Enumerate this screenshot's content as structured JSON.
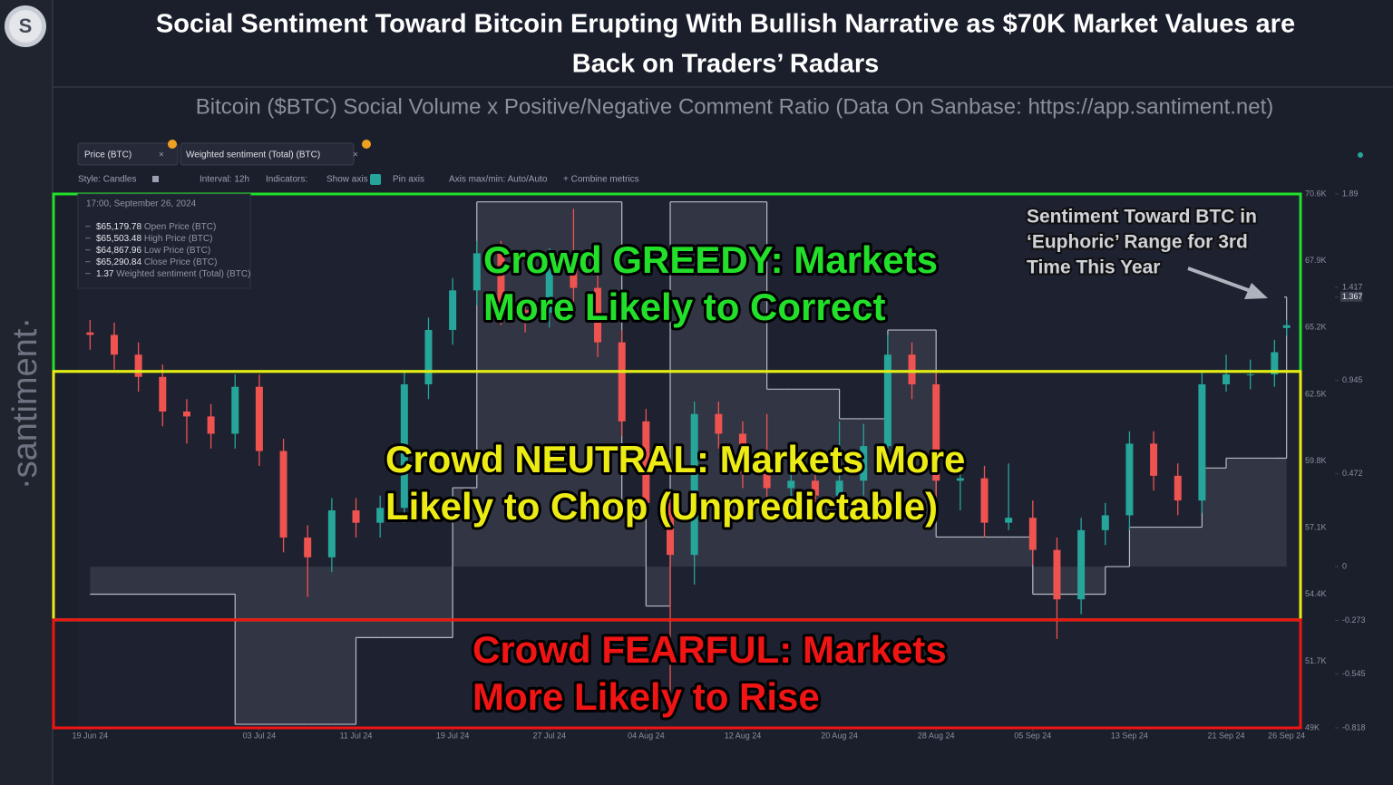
{
  "header": {
    "logo": "S",
    "title_lines": [
      "Social Sentiment Toward Bitcoin Erupting With Bullish Narrative as $70K Market Values are",
      "Back on Traders’ Radars"
    ],
    "subtitle": "Bitcoin ($BTC) Social Volume x Positive/Negative Comment Ratio (Data On Sanbase: https://app.santiment.net)",
    "brand": "·santiment·"
  },
  "toolbar": {
    "tabs": [
      "Price (BTC)",
      "Weighted sentiment (Total) (BTC)"
    ],
    "controls": [
      "Style: Candles",
      "Interval: 12h",
      "Indicators:",
      "Show axis",
      "Pin axis",
      "Axis max/min: Auto/Auto",
      "+ Combine metrics"
    ]
  },
  "tooltip": {
    "time": "17:00, September 26, 2024",
    "rows": [
      {
        "value": "$65,179.78",
        "label": "Open Price (BTC)"
      },
      {
        "value": "$65,503.48",
        "label": "High Price (BTC)"
      },
      {
        "value": "$64,867.96",
        "label": "Low Price (BTC)"
      },
      {
        "value": "$65,290.84",
        "label": "Close Price (BTC)"
      },
      {
        "value": "1.37",
        "label": "Weighted sentiment (Total) (BTC)"
      }
    ]
  },
  "chart_data": {
    "type": "candlestick",
    "x": [
      "2024-06-19",
      "2024-06-21",
      "2024-06-23",
      "2024-06-25",
      "2024-06-27",
      "2024-06-29",
      "2024-07-01",
      "2024-07-03",
      "2024-07-05",
      "2024-07-07",
      "2024-07-09",
      "2024-07-11",
      "2024-07-13",
      "2024-07-15",
      "2024-07-17",
      "2024-07-19",
      "2024-07-21",
      "2024-07-23",
      "2024-07-25",
      "2024-07-27",
      "2024-07-29",
      "2024-07-31",
      "2024-08-02",
      "2024-08-04",
      "2024-08-06",
      "2024-08-08",
      "2024-08-10",
      "2024-08-12",
      "2024-08-14",
      "2024-08-16",
      "2024-08-18",
      "2024-08-20",
      "2024-08-22",
      "2024-08-24",
      "2024-08-26",
      "2024-08-28",
      "2024-08-30",
      "2024-09-01",
      "2024-09-03",
      "2024-09-05",
      "2024-09-07",
      "2024-09-09",
      "2024-09-11",
      "2024-09-13",
      "2024-09-15",
      "2024-09-17",
      "2024-09-19",
      "2024-09-21",
      "2024-09-23",
      "2024-09-25",
      "2024-09-26"
    ],
    "open": [
      65000,
      64900,
      64100,
      63200,
      61800,
      61600,
      60900,
      62800,
      60200,
      56700,
      55900,
      57800,
      57300,
      57900,
      62900,
      65100,
      66700,
      68200,
      65900,
      65800,
      67900,
      66800,
      64600,
      61400,
      58100,
      56000,
      61700,
      60900,
      59300,
      58700,
      59000,
      58400,
      59000,
      60400,
      64100,
      62900,
      59000,
      59100,
      57300,
      57500,
      56200,
      54200,
      57000,
      57600,
      60500,
      59200,
      58200,
      62900,
      63300,
      63300,
      65179.78
    ],
    "high": [
      65500,
      65400,
      64600,
      63700,
      62300,
      62100,
      63300,
      63300,
      60700,
      57200,
      58300,
      58300,
      58400,
      63400,
      65600,
      67200,
      68700,
      68700,
      66400,
      68400,
      70000,
      67300,
      65100,
      61900,
      58600,
      62200,
      62200,
      61400,
      61700,
      59500,
      59500,
      61400,
      61300,
      64900,
      64600,
      63400,
      59900,
      59600,
      59700,
      58200,
      56700,
      57500,
      58100,
      61000,
      61000,
      59700,
      63400,
      64100,
      63900,
      64700,
      65503.48
    ],
    "low": [
      64300,
      63500,
      62600,
      61200,
      60500,
      60300,
      60300,
      59600,
      56100,
      54300,
      55300,
      56700,
      56700,
      57300,
      62300,
      64500,
      66100,
      65300,
      65000,
      65200,
      66200,
      64000,
      60800,
      57500,
      49500,
      54800,
      60300,
      58700,
      58100,
      57500,
      57800,
      57900,
      58400,
      60300,
      62300,
      58300,
      57800,
      56700,
      57000,
      55600,
      52600,
      53600,
      56400,
      57000,
      58600,
      57600,
      57700,
      62600,
      62700,
      62800,
      64867.96
    ],
    "close": [
      64900,
      64100,
      63200,
      61800,
      61600,
      60900,
      62800,
      60200,
      56700,
      55900,
      57800,
      57300,
      57900,
      62900,
      65100,
      66700,
      68200,
      65900,
      65800,
      67900,
      66800,
      64600,
      61400,
      58100,
      56000,
      61700,
      60900,
      59300,
      58700,
      59000,
      58400,
      59000,
      60400,
      64100,
      62900,
      59000,
      59100,
      57300,
      57500,
      56200,
      54200,
      57000,
      57600,
      60500,
      59200,
      58200,
      62900,
      63300,
      63300,
      64200,
      65290.84
    ],
    "up_color": "#26a69a",
    "down_color": "#ef5350",
    "sentiment": {
      "name": "Weighted sentiment (Total) (BTC)",
      "axis": "y2",
      "color": "#b8bcc6",
      "values": [
        -0.14,
        -0.14,
        -0.14,
        -0.14,
        -0.14,
        -0.14,
        -0.8,
        -0.8,
        -0.8,
        -0.8,
        -0.8,
        -0.36,
        -0.36,
        -0.36,
        -0.36,
        0.4,
        1.85,
        1.85,
        1.85,
        1.85,
        1.85,
        1.85,
        0.3,
        -0.2,
        1.85,
        1.85,
        1.85,
        1.85,
        0.9,
        0.9,
        0.9,
        0.75,
        0.75,
        1.2,
        1.2,
        0.15,
        0.15,
        0.15,
        0.15,
        -0.14,
        -0.14,
        -0.14,
        0,
        0.2,
        0.2,
        0.2,
        0.5,
        0.55,
        0.55,
        0.55,
        1.367
      ]
    },
    "xlim": [
      "2024-06-18",
      "2024-09-27"
    ],
    "xticks": [
      {
        "value": "2024-06-19",
        "label": "19 Jun 24"
      },
      {
        "value": "2024-07-03",
        "label": "03 Jul 24"
      },
      {
        "value": "2024-07-11",
        "label": "11 Jul 24"
      },
      {
        "value": "2024-07-19",
        "label": "19 Jul 24"
      },
      {
        "value": "2024-07-27",
        "label": "27 Jul 24"
      },
      {
        "value": "2024-08-04",
        "label": "04 Aug 24"
      },
      {
        "value": "2024-08-12",
        "label": "12 Aug 24"
      },
      {
        "value": "2024-08-20",
        "label": "20 Aug 24"
      },
      {
        "value": "2024-08-28",
        "label": "28 Aug 24"
      },
      {
        "value": "2024-09-05",
        "label": "05 Sep 24"
      },
      {
        "value": "2024-09-13",
        "label": "13 Sep 24"
      },
      {
        "value": "2024-09-21",
        "label": "21 Sep 24"
      },
      {
        "value": "2024-09-26",
        "label": "26 Sep 24"
      }
    ],
    "ylim": [
      49000,
      70600
    ],
    "yticks": [
      {
        "value": 70600,
        "label": "70.6K"
      },
      {
        "value": 67900,
        "label": "67.9K"
      },
      {
        "value": 65200,
        "label": "65.2K"
      },
      {
        "value": 62500,
        "label": "62.5K"
      },
      {
        "value": 59800,
        "label": "59.8K"
      },
      {
        "value": 57100,
        "label": "57.1K"
      },
      {
        "value": 54400,
        "label": "54.4K"
      },
      {
        "value": 51700,
        "label": "51.7K"
      },
      {
        "value": 49000,
        "label": "49K"
      }
    ],
    "y2lim": [
      -0.818,
      1.89
    ],
    "y2ticks": [
      1.89,
      1.417,
      1.367,
      0.945,
      0.472,
      0,
      -0.273,
      -0.545,
      -0.818
    ],
    "grid": false,
    "zones": [
      {
        "lines": [
          "Crowd GREEDY: Markets",
          "More Likely to Correct"
        ],
        "color": "#22e02a",
        "range": [
          0.99,
          1.89
        ]
      },
      {
        "lines": [
          "Crowd NEUTRAL: Markets More",
          "Likely to Chop (Unpredictable)"
        ],
        "color": "#ecec14",
        "range": [
          -0.27,
          0.99
        ]
      },
      {
        "lines": [
          "Crowd FEARFUL: Markets",
          "More Likely to Rise"
        ],
        "color": "#f01414",
        "range": [
          -0.818,
          -0.27
        ]
      }
    ],
    "annotation": [
      "Sentiment Toward BTC in",
      "‘Euphoric’ Range for 3rd",
      "Time This Year"
    ]
  }
}
